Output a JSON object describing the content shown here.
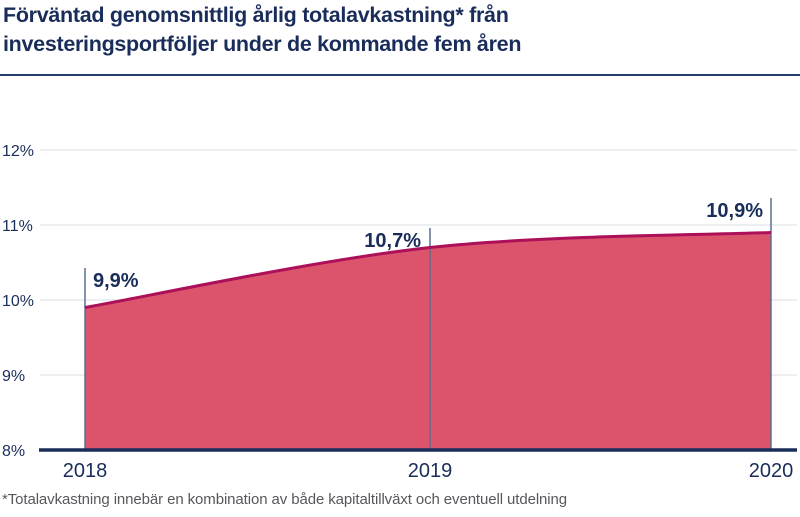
{
  "page": {
    "title_line1": "Förväntad genomsnittlig årlig totalavkastning* från",
    "title_line2": "investeringsportföljer under de kommande fem åren",
    "footnote": "*Totalavkastning innebär en kombination av både kapitaltillväxt och eventuell utdelning"
  },
  "colors": {
    "title_text": "#1a2d5a",
    "axis_text": "#1a2d5a",
    "divider": "#24416f",
    "area_fill": "#dc536c",
    "area_line": "#ab1059",
    "marker_line": "#5c7192",
    "gridline": "#e7e9ee",
    "axis_line": "#1a2d5a",
    "footnote_text": "#57585c",
    "background": "#ffffff"
  },
  "chart_data": {
    "type": "area",
    "title": "Förväntad genomsnittlig årlig totalavkastning* från investeringsportföljer under de kommande fem åren",
    "categories": [
      "2018",
      "2019",
      "2020"
    ],
    "values": [
      9.9,
      10.7,
      10.9
    ],
    "point_labels": [
      "9,9%",
      "10,7%",
      "10,9%"
    ],
    "ytick_values": [
      8,
      9,
      10,
      11,
      12
    ],
    "ytick_labels": [
      "8%",
      "9%",
      "10%",
      "11%",
      "12%"
    ],
    "ylim": [
      8,
      12.3
    ],
    "xlabel": "",
    "ylabel": "",
    "grid": true,
    "legend_position": "none",
    "footnote": "*Totalavkastning innebär en kombination av både kapitaltillväxt och eventuell utdelning"
  }
}
